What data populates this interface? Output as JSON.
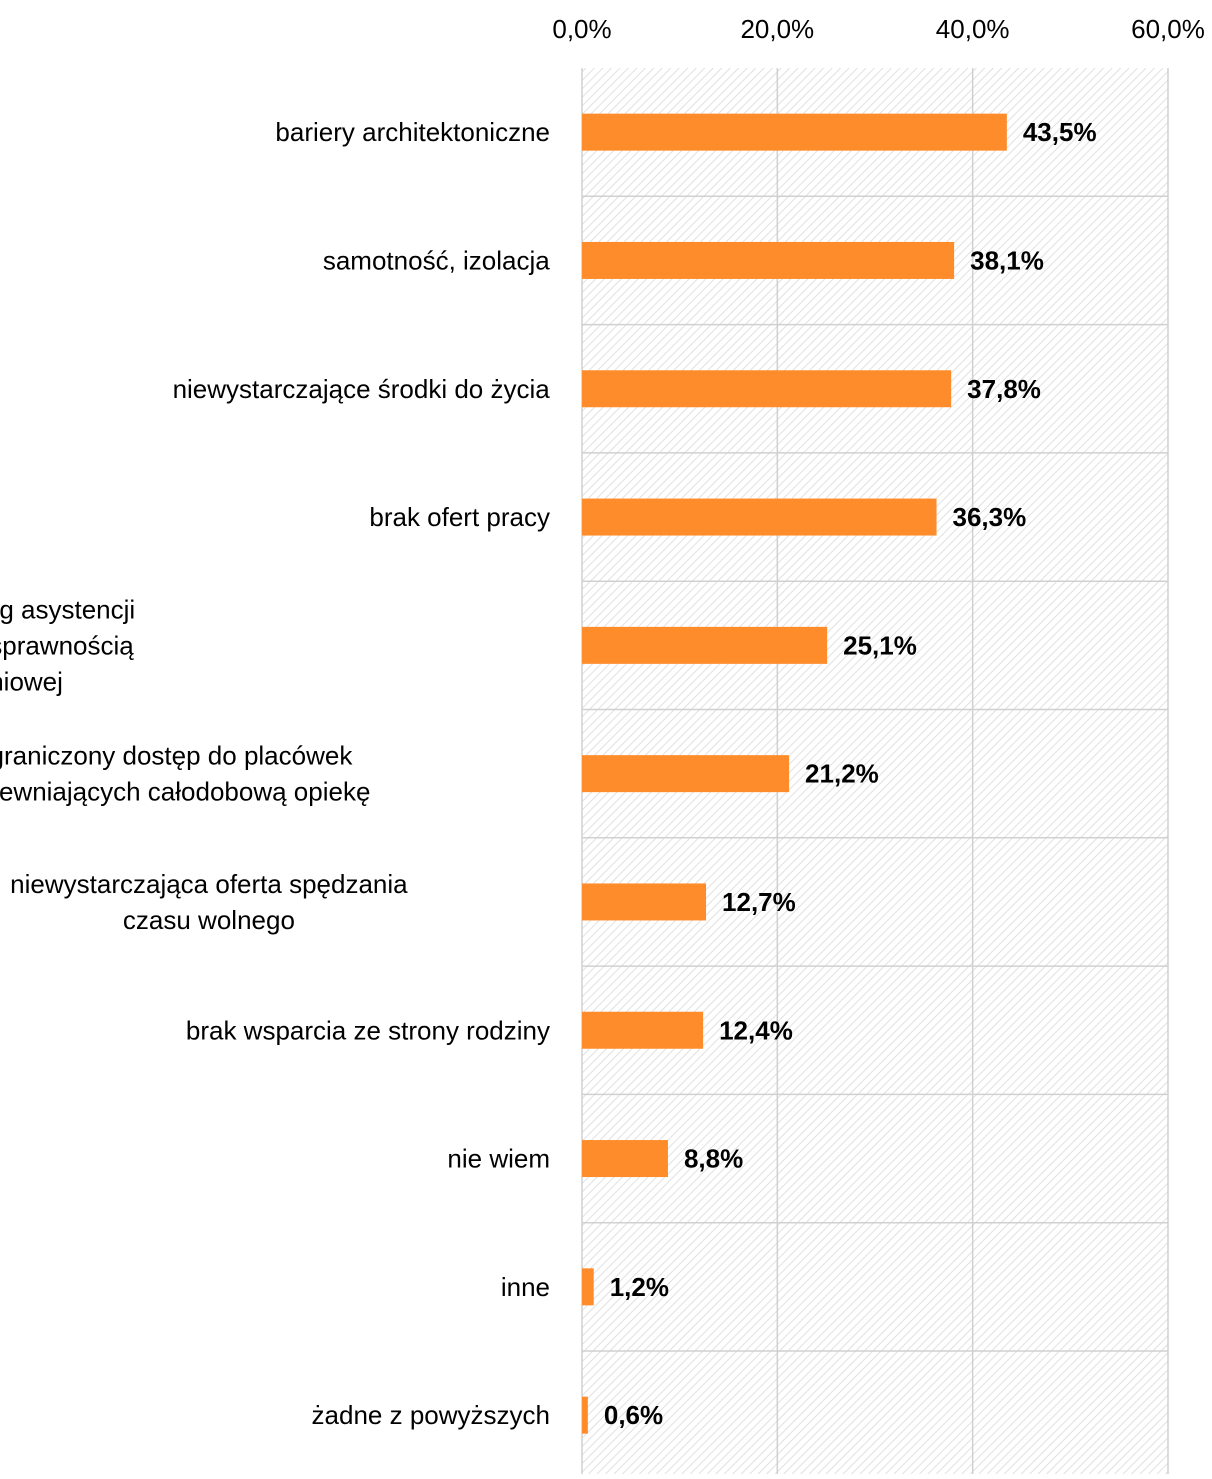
{
  "chart_data": {
    "type": "bar",
    "orientation": "horizontal",
    "title": "",
    "xlabel": "",
    "ylabel": "",
    "xlim": [
      0,
      60
    ],
    "x_ticks": [
      0,
      20,
      40,
      60
    ],
    "x_tick_labels": [
      "0,0%",
      "20,0%",
      "40,0%",
      "60,0%"
    ],
    "x_axis_position": "top",
    "grid": true,
    "legend": "none",
    "bar_color": "#FF8C2A",
    "plot_background": "hatched light gray",
    "categories": [
      [
        "bariery architektoniczne"
      ],
      [
        "samotność, izolacja"
      ],
      [
        "niewystarczające środki do życia"
      ],
      [
        "brak ofert pracy"
      ],
      [
        "ograniczony dostęp do usług asystencji",
        "osobistej osoby z niepełnosprawnością",
        "oraz opieki wytchnieniowej"
      ],
      [
        "ograniczony dostęp do placówek",
        "zapewniających całodobową opiekę"
      ],
      [
        "niewystarczająca oferta spędzania",
        "czasu wolnego"
      ],
      [
        "brak wsparcia ze strony rodziny"
      ],
      [
        "nie wiem"
      ],
      [
        "inne"
      ],
      [
        "żadne z powyższych"
      ]
    ],
    "values": [
      43.5,
      38.1,
      37.8,
      36.3,
      25.1,
      21.2,
      12.7,
      12.4,
      8.8,
      1.2,
      0.6
    ],
    "value_labels": [
      "43,5%",
      "38,1%",
      "37,8%",
      "36,3%",
      "25,1%",
      "21,2%",
      "12,7%",
      "12,4%",
      "8,8%",
      "1,2%",
      "0,6%"
    ]
  }
}
